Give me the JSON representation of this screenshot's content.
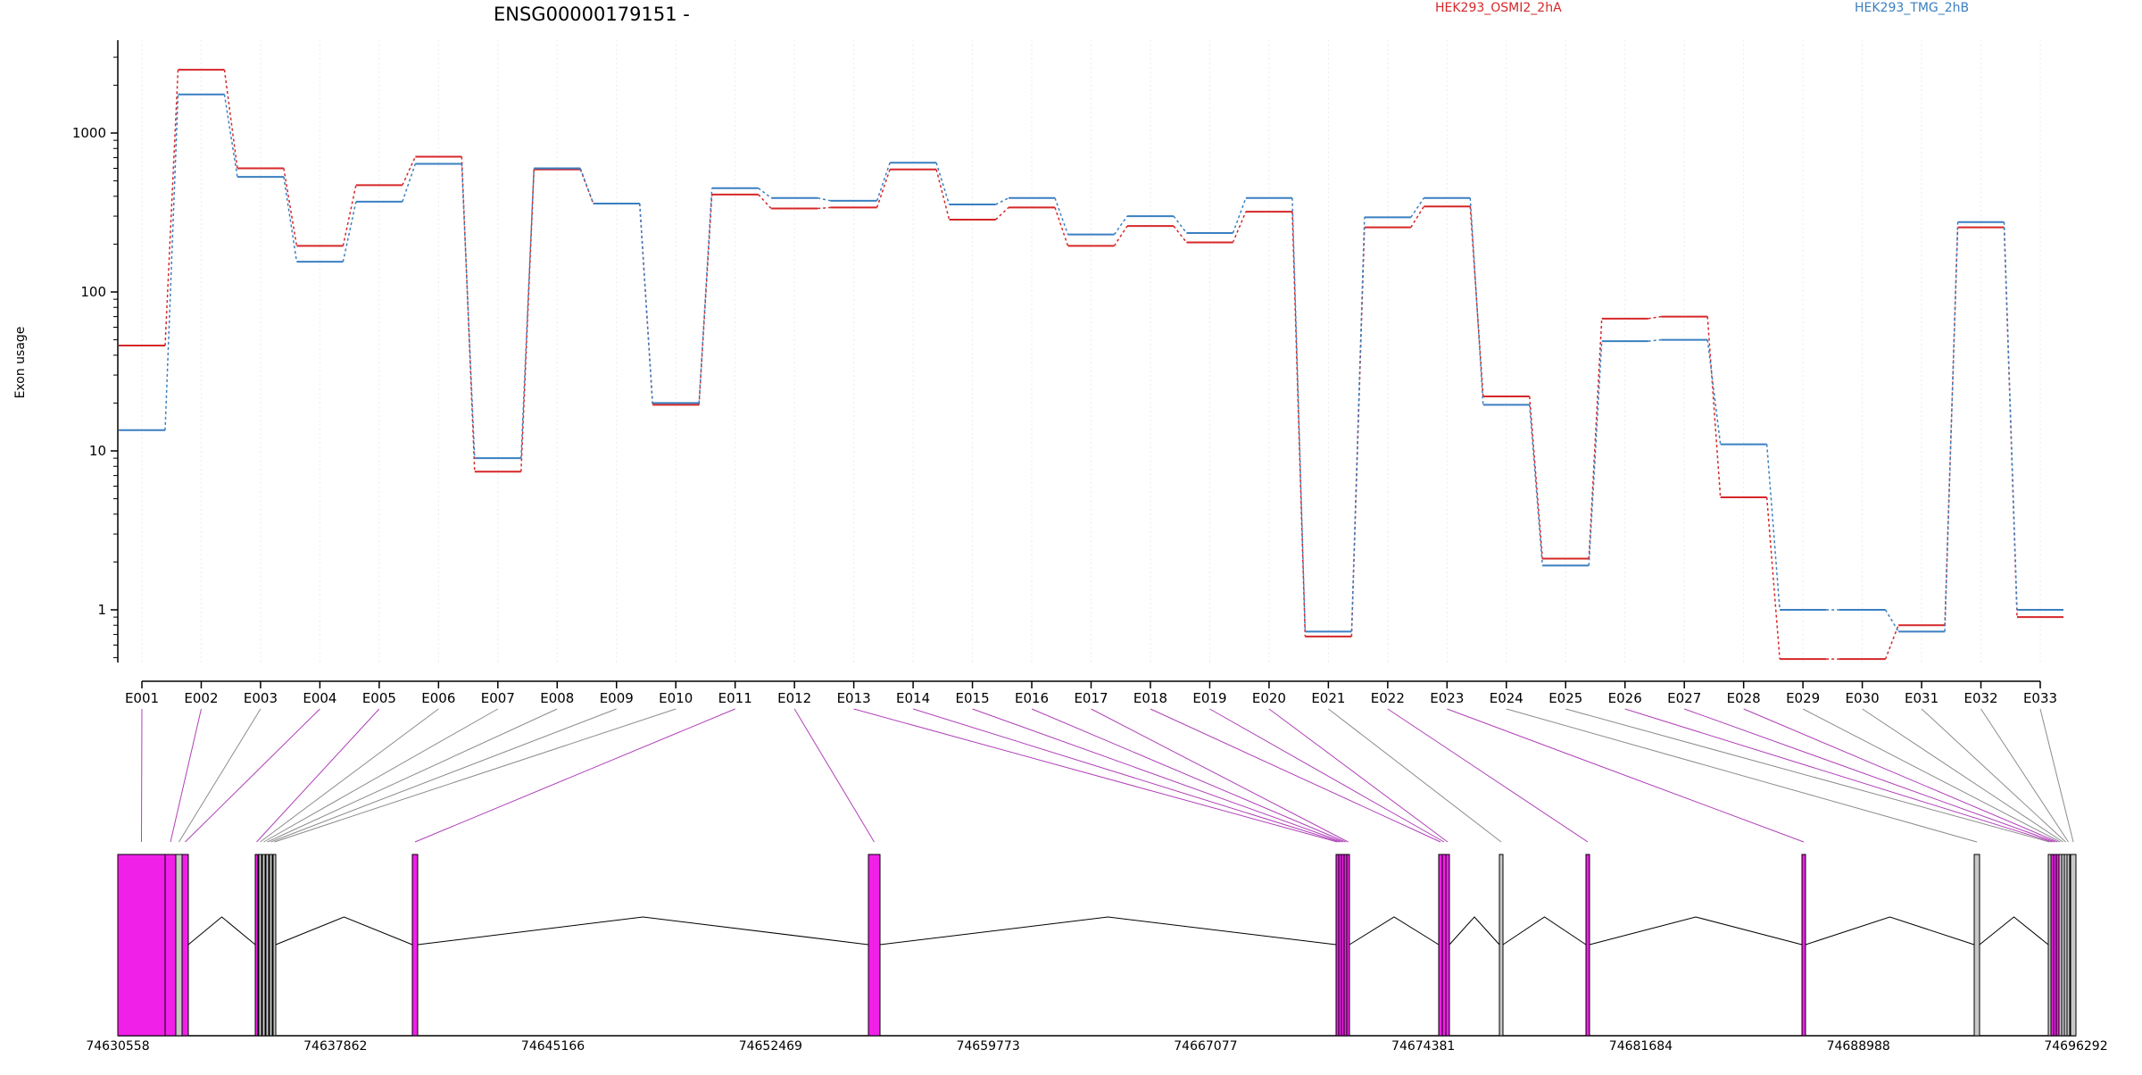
{
  "chart_data": {
    "type": "line",
    "title": "ENSG00000179151 -",
    "xlabel": "",
    "ylabel": "Exon usage",
    "y_scale": "log",
    "ylim": [
      0.45,
      3500
    ],
    "y_ticks": [
      1,
      10,
      100,
      1000
    ],
    "y_tick_labels": [
      "1",
      "10",
      "100",
      "1000"
    ],
    "grid": "vertical dotted",
    "legend_placement": "top",
    "categories": [
      "E001",
      "E002",
      "E003",
      "E004",
      "E005",
      "E006",
      "E007",
      "E008",
      "E009",
      "E010",
      "E011",
      "E012",
      "E013",
      "E014",
      "E015",
      "E016",
      "E017",
      "E018",
      "E019",
      "E020",
      "E021",
      "E022",
      "E023",
      "E024",
      "E025",
      "E026",
      "E027",
      "E028",
      "E029",
      "E030",
      "E031",
      "E032",
      "E033"
    ],
    "series": [
      {
        "name": "HEK293_OSMI2_2hA",
        "color": "#d62728",
        "values": [
          46,
          2500,
          600,
          195,
          470,
          710,
          7.4,
          590,
          360,
          19.5,
          410,
          335,
          340,
          590,
          285,
          340,
          195,
          260,
          205,
          320,
          0.68,
          255,
          345,
          22,
          2.1,
          68,
          70,
          5.1,
          0.49,
          0.49,
          0.8,
          255,
          0.9
        ]
      },
      {
        "name": "HEK293_TMG_2hB",
        "color": "#3a7fc1",
        "values": [
          13.5,
          1750,
          530,
          155,
          370,
          640,
          9,
          600,
          360,
          20,
          450,
          390,
          375,
          650,
          355,
          390,
          230,
          300,
          235,
          390,
          0.73,
          295,
          390,
          19.5,
          1.9,
          49,
          50,
          11,
          1,
          1,
          0.73,
          275,
          1
        ]
      }
    ],
    "gene_model": {
      "coordinate_labels": [
        "74630558",
        "74637862",
        "74645166",
        "74652469",
        "74659773",
        "74667077",
        "74674381",
        "74681684",
        "74688988",
        "74696292"
      ],
      "highlight_color": "#f020e8",
      "significant_exons": [
        "E001",
        "E002",
        "E004",
        "E005",
        "E011",
        "E012",
        "E013",
        "E014",
        "E015",
        "E016",
        "E017",
        "E018",
        "E019",
        "E020",
        "E022",
        "E023",
        "E026",
        "E027",
        "E028"
      ]
    }
  }
}
